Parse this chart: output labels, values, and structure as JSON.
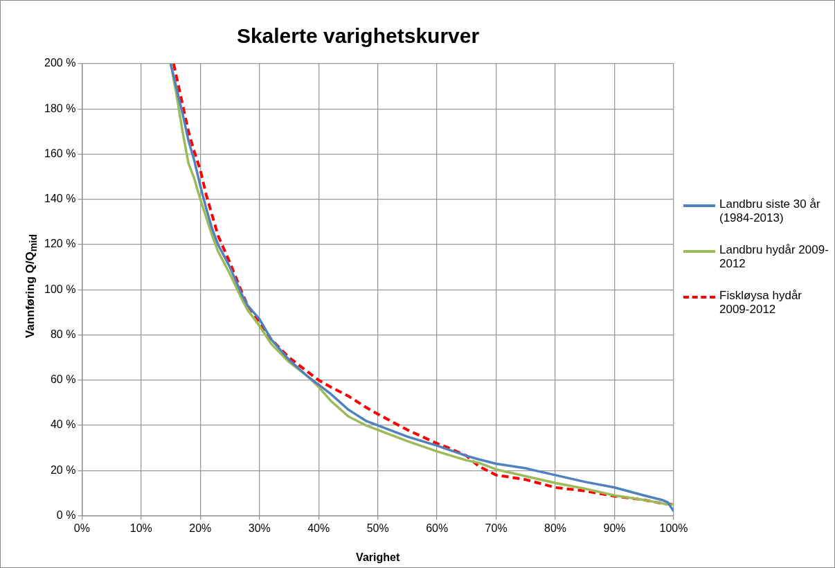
{
  "chart_data": {
    "type": "line",
    "title": "Skalerte varighetskurver",
    "xlabel": "Varighet",
    "ylabel": "Vannføring Q/Q$_{mid}$",
    "xlim": [
      0,
      100
    ],
    "ylim": [
      0,
      200
    ],
    "xticks": [
      {
        "value": 0,
        "label": "0%"
      },
      {
        "value": 10,
        "label": "10%"
      },
      {
        "value": 20,
        "label": "20%"
      },
      {
        "value": 30,
        "label": "30%"
      },
      {
        "value": 40,
        "label": "40%"
      },
      {
        "value": 50,
        "label": "50%"
      },
      {
        "value": 60,
        "label": "60%"
      },
      {
        "value": 70,
        "label": "70%"
      },
      {
        "value": 80,
        "label": "80%"
      },
      {
        "value": 90,
        "label": "90%"
      },
      {
        "value": 100,
        "label": "100%"
      }
    ],
    "yticks": [
      {
        "value": 0,
        "label": "0 %"
      },
      {
        "value": 20,
        "label": "20 %"
      },
      {
        "value": 40,
        "label": "40 %"
      },
      {
        "value": 60,
        "label": "60 %"
      },
      {
        "value": 80,
        "label": "80 %"
      },
      {
        "value": 100,
        "label": "100 %"
      },
      {
        "value": 120,
        "label": "120 %"
      },
      {
        "value": 140,
        "label": "140 %"
      },
      {
        "value": 160,
        "label": "160 %"
      },
      {
        "value": 180,
        "label": "180 %"
      },
      {
        "value": 200,
        "label": "200 %"
      }
    ],
    "grid": true,
    "legend": "right",
    "marker": "none",
    "series": [
      {
        "name": "Landbru siste 30 år (1984-2013)",
        "color": "#4f81bd",
        "line_style": "solid",
        "x": [
          15,
          16,
          17,
          18,
          19,
          20,
          21,
          22,
          23,
          25,
          27,
          28,
          30,
          32,
          35,
          38,
          40,
          42,
          45,
          48,
          50,
          55,
          60,
          65,
          67,
          70,
          75,
          80,
          85,
          90,
          95,
          98,
          99,
          100
        ],
        "values": [
          200,
          189,
          178,
          166,
          157,
          146,
          136,
          127,
          120,
          110,
          98,
          93,
          87,
          78,
          69,
          62,
          58,
          54,
          47,
          42,
          40,
          35,
          31,
          26.5,
          25,
          23,
          21,
          18,
          15,
          12.5,
          9,
          7,
          6,
          2
        ]
      },
      {
        "name": "Landbru hydår 2009-2012",
        "color": "#9bbb59",
        "line_style": "solid",
        "x": [
          15,
          16,
          17,
          18,
          19,
          20,
          21,
          22,
          23,
          25,
          27,
          28,
          30,
          32,
          35,
          38,
          40,
          42,
          45,
          48,
          50,
          55,
          60,
          65,
          67,
          70,
          75,
          80,
          85,
          90,
          95,
          98,
          99,
          100
        ],
        "values": [
          200,
          186,
          170,
          156,
          149,
          140,
          132,
          124,
          117,
          107,
          96,
          91,
          84,
          76,
          68,
          62,
          57,
          51,
          44,
          40,
          38,
          33,
          28.5,
          24.5,
          23.5,
          20.5,
          17.5,
          14.5,
          12,
          9,
          7,
          5.5,
          5,
          5
        ]
      },
      {
        "name": "Fiskløysa hydår 2009-2012",
        "color": "#ff0000",
        "line_style": "dashed",
        "x": [
          15.5,
          16,
          17,
          18,
          19,
          20,
          21,
          22,
          23,
          25,
          27,
          28,
          30,
          32,
          35,
          38,
          40,
          42,
          45,
          48,
          50,
          55,
          60,
          62,
          65,
          67,
          70,
          75,
          80,
          85,
          90,
          95,
          98,
          100
        ],
        "values": [
          200,
          194,
          182,
          170,
          161,
          153,
          142,
          133,
          124,
          112,
          99,
          93,
          86,
          78,
          70,
          64,
          60,
          57,
          53,
          48,
          45,
          38,
          32,
          30,
          26.5,
          22,
          18,
          16,
          12.5,
          11,
          8.7,
          7,
          5.5,
          5
        ]
      }
    ]
  }
}
